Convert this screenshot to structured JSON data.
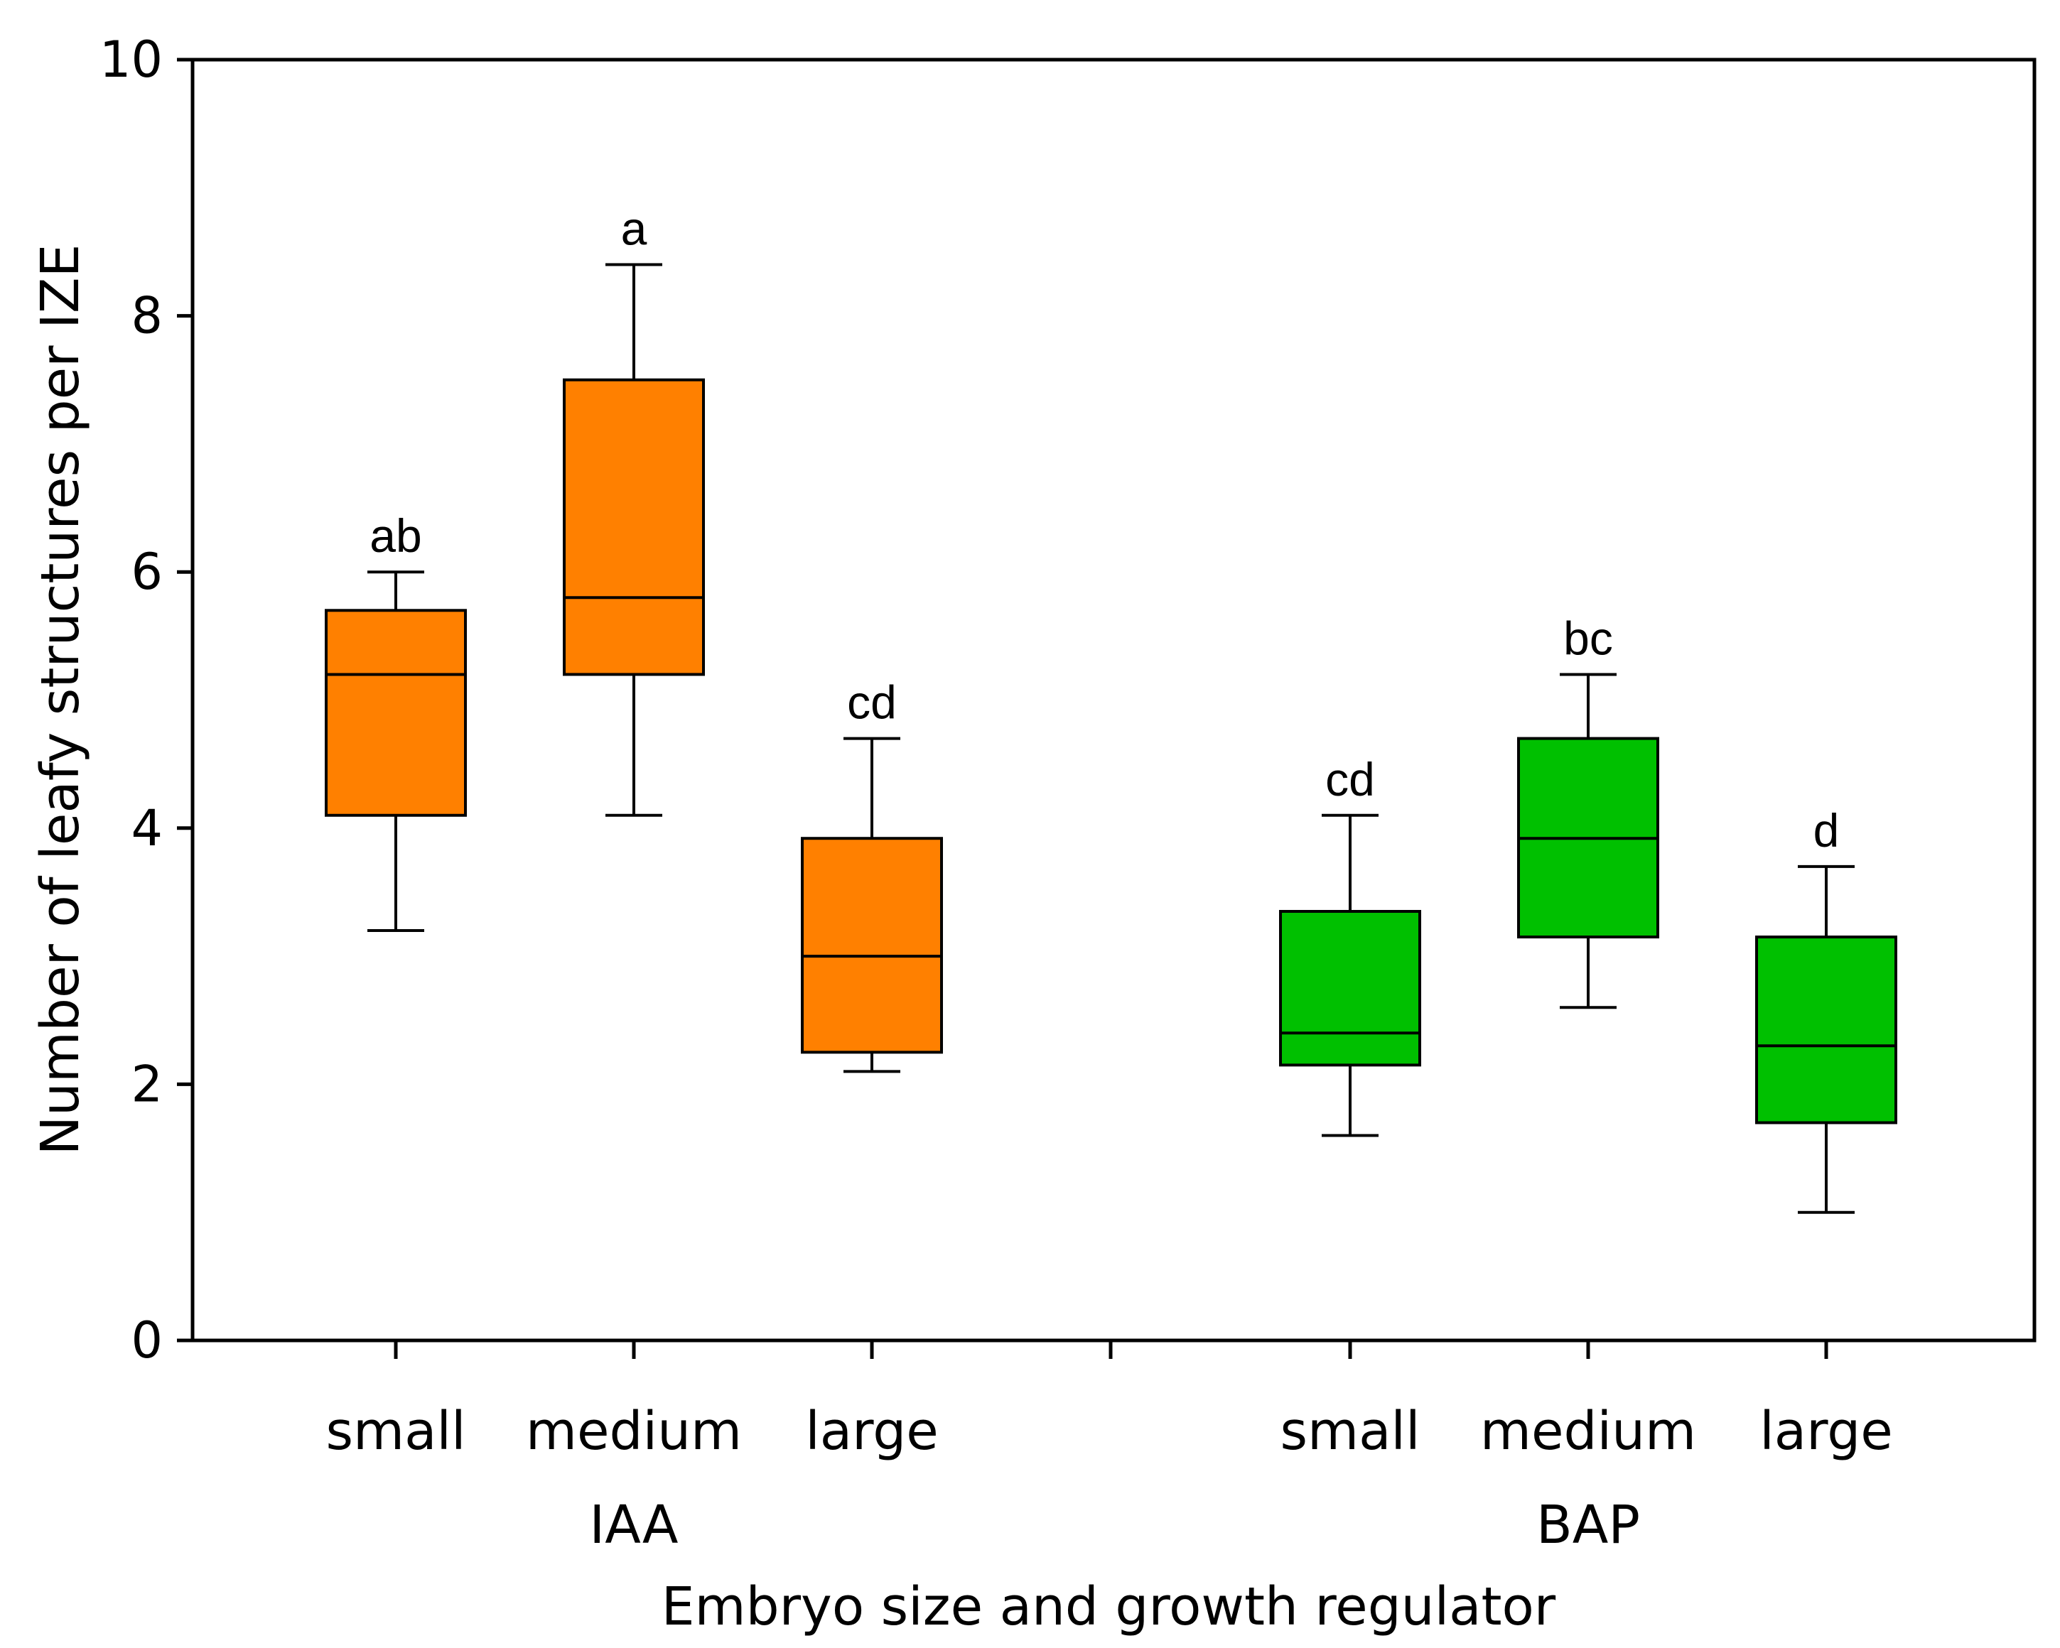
{
  "chart_data": {
    "type": "boxplot",
    "title": "",
    "xlabel": "Embryo size and growth regulator",
    "ylabel": "Number of leafy structures per IZE",
    "ylim": [
      0,
      10
    ],
    "yticks": [
      0,
      2,
      4,
      6,
      8,
      10
    ],
    "grid": false,
    "groups": [
      {
        "label": "IAA",
        "color": "#ff8000"
      },
      {
        "label": "BAP",
        "color": "#00c000"
      }
    ],
    "boxes": [
      {
        "group": "IAA",
        "category": "small",
        "min": 3.2,
        "q1": 4.1,
        "median": 5.2,
        "q3": 5.7,
        "max": 6.0,
        "letter": "ab"
      },
      {
        "group": "IAA",
        "category": "medium",
        "min": 4.1,
        "q1": 5.2,
        "median": 5.8,
        "q3": 7.5,
        "max": 8.4,
        "letter": "a"
      },
      {
        "group": "IAA",
        "category": "large",
        "min": 2.1,
        "q1": 2.25,
        "median": 3.0,
        "q3": 3.92,
        "max": 4.7,
        "letter": "cd"
      },
      {
        "group": "BAP",
        "category": "small",
        "min": 1.6,
        "q1": 2.15,
        "median": 2.4,
        "q3": 3.35,
        "max": 4.1,
        "letter": "cd"
      },
      {
        "group": "BAP",
        "category": "medium",
        "min": 2.6,
        "q1": 3.15,
        "median": 3.92,
        "q3": 4.7,
        "max": 5.2,
        "letter": "bc"
      },
      {
        "group": "BAP",
        "category": "large",
        "min": 1.0,
        "q1": 1.7,
        "median": 2.3,
        "q3": 3.15,
        "max": 3.7,
        "letter": "d"
      }
    ]
  }
}
